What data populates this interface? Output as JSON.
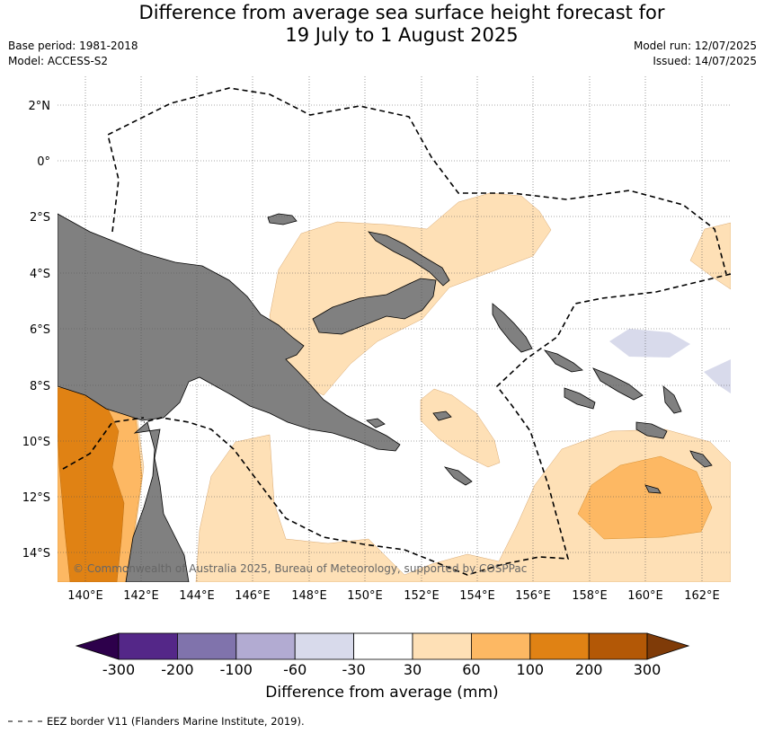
{
  "header": {
    "title_line1": "Difference from average sea surface height forecast for",
    "title_line2": "19 July to 1 August 2025",
    "base_period": "Base period: 1981-2018",
    "model": "Model: ACCESS-S2",
    "model_run": "Model run: 12/07/2025",
    "issued": "Issued: 14/07/2025"
  },
  "map": {
    "lon_range": [
      139,
      163
    ],
    "lat_range": [
      -15,
      3
    ],
    "lat_ticks": [
      "2°N",
      "0°",
      "2°S",
      "4°S",
      "6°S",
      "8°S",
      "10°S",
      "12°S",
      "14°S"
    ],
    "lon_ticks": [
      "140°E",
      "142°E",
      "144°E",
      "146°E",
      "148°E",
      "150°E",
      "152°E",
      "154°E",
      "156°E",
      "158°E",
      "160°E",
      "162°E"
    ],
    "gridlines": true,
    "land_color": "#808080",
    "copyright": "© Commonwealth of Australia 2025, Bureau of Meteorology, supported by COSPPac"
  },
  "colorbar": {
    "title": "Difference from average (mm)",
    "tick_labels": [
      "-300",
      "-200",
      "-100",
      "-60",
      "-30",
      "30",
      "60",
      "100",
      "200",
      "300"
    ],
    "colors": [
      "#2d004b",
      "#542788",
      "#8073ac",
      "#b2abd2",
      "#d8daeb",
      "#ffffff",
      "#fee0b6",
      "#fdb863",
      "#e08214",
      "#b35806",
      "#7f3b08"
    ]
  },
  "legend_note": "EEZ border V11 (Flanders Marine Institute, 2019)."
}
